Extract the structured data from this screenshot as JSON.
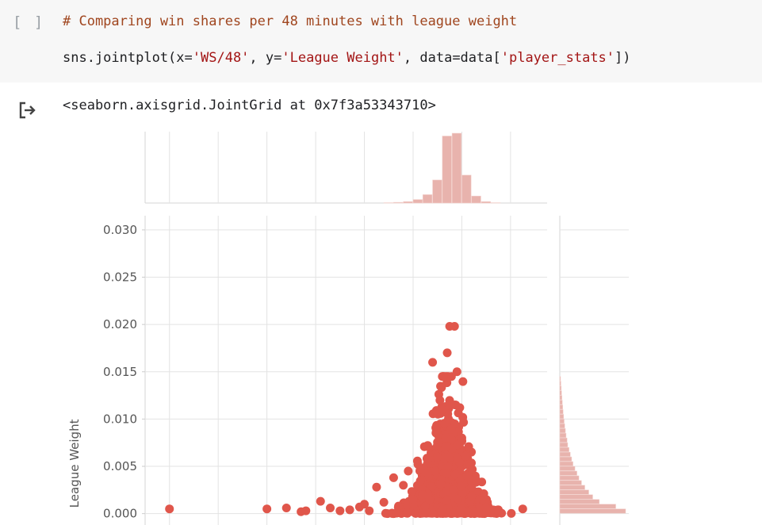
{
  "cell": {
    "run_indicator": "[ ]",
    "comment": "# Comparing win shares per 48 minutes with league weight",
    "code": {
      "pre": "sns.jointplot(x=",
      "arg_x": "'WS/48'",
      "mid": ", y=",
      "arg_y": "'League Weight'",
      "post": ", data=data[",
      "arg_data": "'player_stats'",
      "end": "])"
    }
  },
  "output": {
    "icon": "output-arrow-icon",
    "text": "<seaborn.axisgrid.JointGrid at 0x7f3a53343710>"
  },
  "colors": {
    "point": "#e0564b",
    "hist": "#e8b3ad",
    "grid": "#e3e3e3",
    "text": "#555555"
  },
  "chart_data": {
    "type": "scatter",
    "kind": "jointplot",
    "xlabel": "",
    "ylabel": "League Weight",
    "y_ticks": [
      "0.000",
      "0.005",
      "0.010",
      "0.015",
      "0.020",
      "0.025",
      "0.030"
    ],
    "y_tick_values": [
      0.0,
      0.005,
      0.01,
      0.015,
      0.02,
      0.025,
      0.03
    ],
    "ylim": [
      -0.0007,
      0.0315
    ],
    "xlim": [
      -1.1,
      0.55
    ],
    "x_gridlines": [
      -1.0,
      -0.8,
      -0.6,
      -0.4,
      -0.2,
      0.0,
      0.2,
      0.4
    ],
    "x_tick_labels_visible": false,
    "grid": true,
    "points": [
      [
        -1.0,
        0.0005
      ],
      [
        -0.6,
        0.0005
      ],
      [
        -0.52,
        0.0006
      ],
      [
        -0.46,
        0.0002
      ],
      [
        -0.44,
        0.0003
      ],
      [
        -0.38,
        0.0013
      ],
      [
        -0.34,
        0.0006
      ],
      [
        -0.3,
        0.0003
      ],
      [
        -0.26,
        0.0004
      ],
      [
        -0.22,
        0.0007
      ],
      [
        -0.2,
        0.001
      ],
      [
        -0.18,
        0.0003
      ],
      [
        -0.15,
        0.0028
      ],
      [
        -0.12,
        0.0012
      ],
      [
        -0.08,
        0.0038
      ],
      [
        -0.06,
        0.0008
      ],
      [
        -0.04,
        0.003
      ],
      [
        -0.02,
        0.0045
      ],
      [
        0.0,
        0.0015
      ],
      [
        0.02,
        0.0052
      ],
      [
        0.04,
        0.002
      ],
      [
        0.06,
        0.0072
      ],
      [
        0.08,
        0.016
      ],
      [
        0.1,
        0.006
      ],
      [
        0.12,
        0.011
      ],
      [
        0.14,
        0.017
      ],
      [
        0.15,
        0.0198
      ],
      [
        0.17,
        0.0198
      ],
      [
        0.18,
        0.015
      ],
      [
        0.2,
        0.008
      ],
      [
        0.22,
        0.004
      ],
      [
        0.26,
        0.0035
      ],
      [
        0.3,
        0.0006
      ],
      [
        0.35,
        0.0004
      ],
      [
        0.45,
        0.0005
      ]
    ],
    "density_core": {
      "x_center": 0.14,
      "x_spread": 0.075,
      "scale": 0.0032
    },
    "top_hist": {
      "bins": [
        -0.12,
        -0.08,
        -0.04,
        0.0,
        0.04,
        0.08,
        0.12,
        0.16,
        0.2,
        0.24,
        0.28,
        0.32
      ],
      "counts": [
        0.005,
        0.01,
        0.02,
        0.05,
        0.12,
        0.33,
        0.96,
        1.0,
        0.4,
        0.1,
        0.02,
        0.005
      ]
    },
    "right_hist": {
      "bin_width": 0.0005,
      "counts": [
        1.0,
        0.85,
        0.6,
        0.5,
        0.44,
        0.38,
        0.33,
        0.29,
        0.26,
        0.23,
        0.2,
        0.18,
        0.16,
        0.14,
        0.12,
        0.11,
        0.095,
        0.085,
        0.075,
        0.066,
        0.058,
        0.05,
        0.044,
        0.038,
        0.032,
        0.027,
        0.022,
        0.017,
        0.012
      ]
    }
  }
}
